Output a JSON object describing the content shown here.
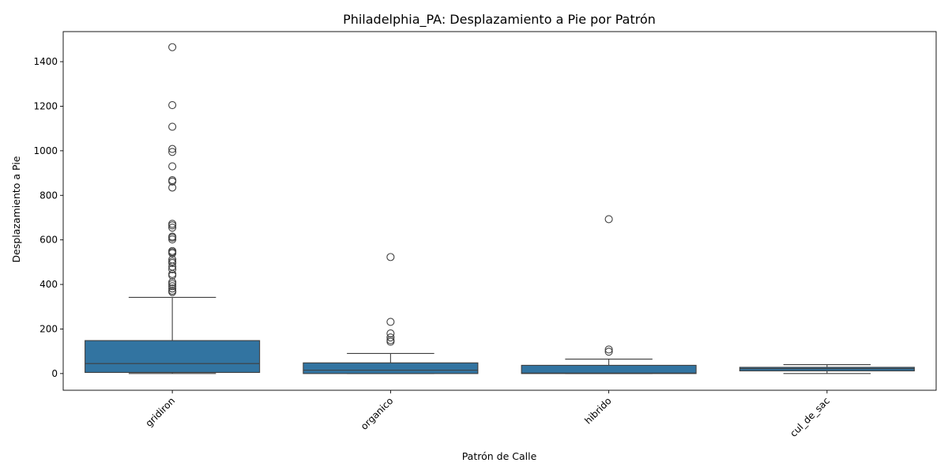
{
  "chart_data": {
    "type": "box",
    "title": "Philadelphia_PA: Desplazamiento a Pie por Patrón",
    "xlabel": "Patrón de Calle",
    "ylabel": "Desplazamiento a Pie",
    "categories": [
      "gridiron",
      "organico",
      "hibrido",
      "cul_de_sac"
    ],
    "ylim": [
      -75,
      1535
    ],
    "yticks": [
      0,
      200,
      400,
      600,
      800,
      1000,
      1200,
      1400
    ],
    "grid": false,
    "color": "#3274a1",
    "boxes": [
      {
        "category": "gridiron",
        "whisker_low": 0,
        "q1": 5,
        "median": 45,
        "q3": 148,
        "whisker_high": 342,
        "outliers": [
          1465,
          1205,
          1108,
          1008,
          995,
          930,
          868,
          862,
          835,
          672,
          665,
          655,
          615,
          610,
          602,
          550,
          545,
          540,
          512,
          503,
          496,
          480,
          468,
          447,
          440,
          410,
          402,
          392,
          382,
          372,
          366
        ]
      },
      {
        "category": "organico",
        "whisker_low": 0,
        "q1": 0,
        "median": 15,
        "q3": 48,
        "whisker_high": 90,
        "outliers": [
          523,
          232,
          180,
          162,
          150,
          143
        ]
      },
      {
        "category": "hibrido",
        "whisker_low": 0,
        "q1": 0,
        "median": 2,
        "q3": 37,
        "whisker_high": 65,
        "outliers": [
          693,
          108,
          98
        ]
      },
      {
        "category": "cul_de_sac",
        "whisker_low": 0,
        "q1": 12,
        "median": 22,
        "q3": 28,
        "whisker_high": 40,
        "outliers": []
      }
    ]
  }
}
